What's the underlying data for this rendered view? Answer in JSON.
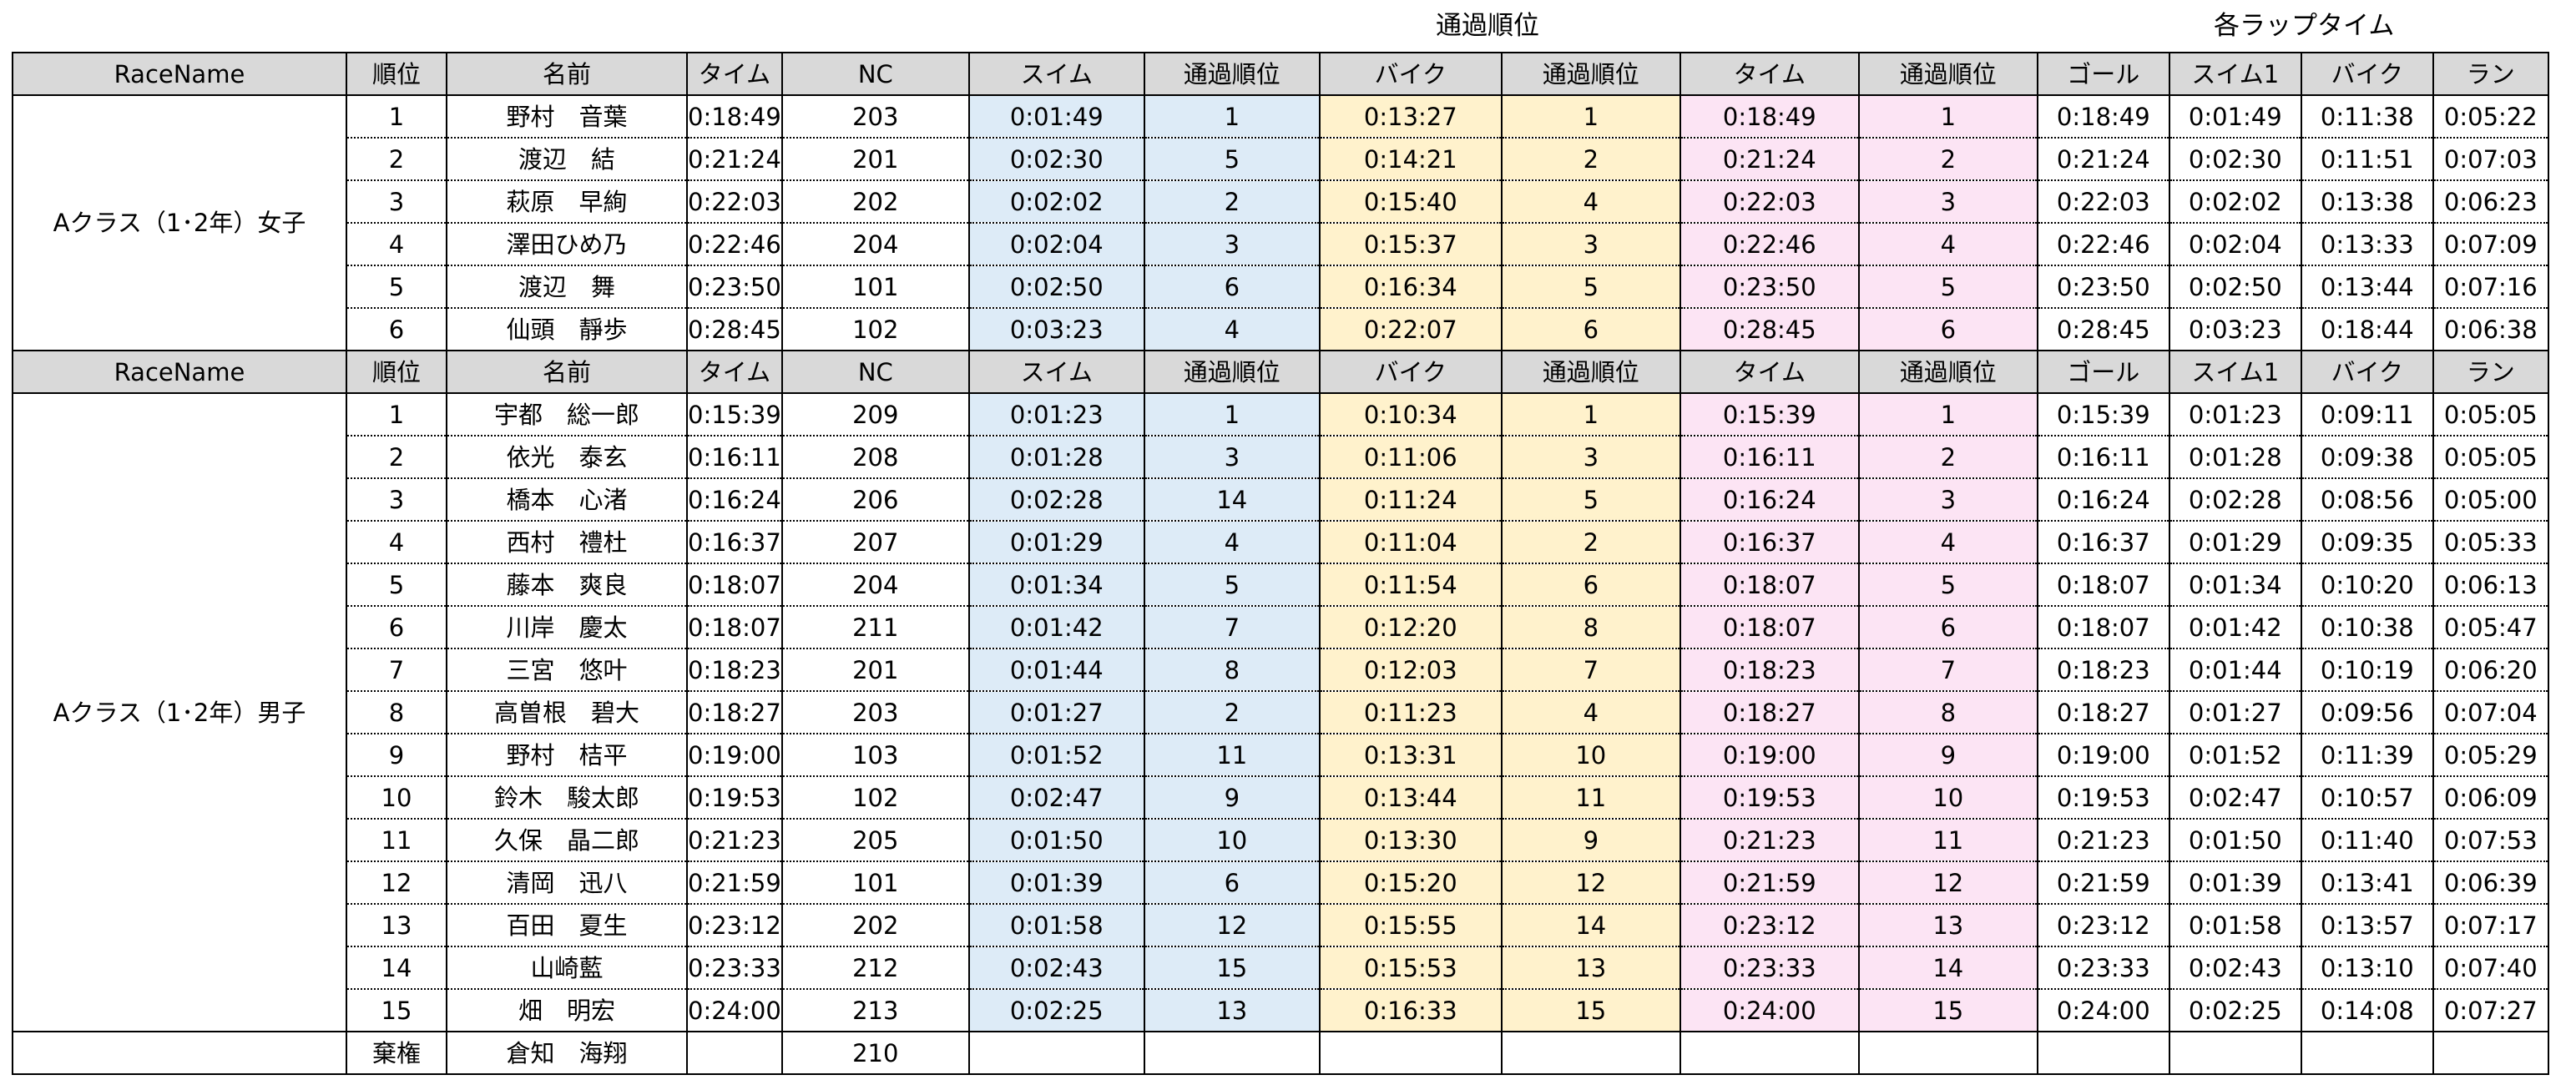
{
  "super_headers": {
    "passing": "通過順位",
    "lap": "各ラップタイム"
  },
  "header": [
    "RaceName",
    "順位",
    "名前",
    "タイム",
    "NC",
    "スイム",
    "通過順位",
    "バイク",
    "通過順位",
    "タイム",
    "通過順位",
    "ゴール",
    "スイム1",
    "バイク",
    "ラン"
  ],
  "groups": [
    {
      "race_name": "Aクラス（1･2年）女子",
      "rows": [
        [
          "1",
          "野村　音葉",
          "0:18:49",
          "203",
          "0:01:49",
          "1",
          "0:13:27",
          "1",
          "0:18:49",
          "1",
          "0:18:49",
          "0:01:49",
          "0:11:38",
          "0:05:22"
        ],
        [
          "2",
          "渡辺　結",
          "0:21:24",
          "201",
          "0:02:30",
          "5",
          "0:14:21",
          "2",
          "0:21:24",
          "2",
          "0:21:24",
          "0:02:30",
          "0:11:51",
          "0:07:03"
        ],
        [
          "3",
          "萩原　早絢",
          "0:22:03",
          "202",
          "0:02:02",
          "2",
          "0:15:40",
          "4",
          "0:22:03",
          "3",
          "0:22:03",
          "0:02:02",
          "0:13:38",
          "0:06:23"
        ],
        [
          "4",
          "澤田ひめ乃",
          "0:22:46",
          "204",
          "0:02:04",
          "3",
          "0:15:37",
          "3",
          "0:22:46",
          "4",
          "0:22:46",
          "0:02:04",
          "0:13:33",
          "0:07:09"
        ],
        [
          "5",
          "渡辺　舞",
          "0:23:50",
          "101",
          "0:02:50",
          "6",
          "0:16:34",
          "5",
          "0:23:50",
          "5",
          "0:23:50",
          "0:02:50",
          "0:13:44",
          "0:07:16"
        ],
        [
          "6",
          "仙頭　靜歩",
          "0:28:45",
          "102",
          "0:03:23",
          "4",
          "0:22:07",
          "6",
          "0:28:45",
          "6",
          "0:28:45",
          "0:03:23",
          "0:18:44",
          "0:06:38"
        ]
      ]
    },
    {
      "race_name": "Aクラス（1･2年）男子",
      "rows": [
        [
          "1",
          "宇都　総一郎",
          "0:15:39",
          "209",
          "0:01:23",
          "1",
          "0:10:34",
          "1",
          "0:15:39",
          "1",
          "0:15:39",
          "0:01:23",
          "0:09:11",
          "0:05:05"
        ],
        [
          "2",
          "依光　泰玄",
          "0:16:11",
          "208",
          "0:01:28",
          "3",
          "0:11:06",
          "3",
          "0:16:11",
          "2",
          "0:16:11",
          "0:01:28",
          "0:09:38",
          "0:05:05"
        ],
        [
          "3",
          "橋本　心渚",
          "0:16:24",
          "206",
          "0:02:28",
          "14",
          "0:11:24",
          "5",
          "0:16:24",
          "3",
          "0:16:24",
          "0:02:28",
          "0:08:56",
          "0:05:00"
        ],
        [
          "4",
          "西村　禮杜",
          "0:16:37",
          "207",
          "0:01:29",
          "4",
          "0:11:04",
          "2",
          "0:16:37",
          "4",
          "0:16:37",
          "0:01:29",
          "0:09:35",
          "0:05:33"
        ],
        [
          "5",
          "藤本　爽良",
          "0:18:07",
          "204",
          "0:01:34",
          "5",
          "0:11:54",
          "6",
          "0:18:07",
          "5",
          "0:18:07",
          "0:01:34",
          "0:10:20",
          "0:06:13"
        ],
        [
          "6",
          "川岸　慶太",
          "0:18:07",
          "211",
          "0:01:42",
          "7",
          "0:12:20",
          "8",
          "0:18:07",
          "6",
          "0:18:07",
          "0:01:42",
          "0:10:38",
          "0:05:47"
        ],
        [
          "7",
          "三宮　悠叶",
          "0:18:23",
          "201",
          "0:01:44",
          "8",
          "0:12:03",
          "7",
          "0:18:23",
          "7",
          "0:18:23",
          "0:01:44",
          "0:10:19",
          "0:06:20"
        ],
        [
          "8",
          "高曽根　碧大",
          "0:18:27",
          "203",
          "0:01:27",
          "2",
          "0:11:23",
          "4",
          "0:18:27",
          "8",
          "0:18:27",
          "0:01:27",
          "0:09:56",
          "0:07:04"
        ],
        [
          "9",
          "野村　桔平",
          "0:19:00",
          "103",
          "0:01:52",
          "11",
          "0:13:31",
          "10",
          "0:19:00",
          "9",
          "0:19:00",
          "0:01:52",
          "0:11:39",
          "0:05:29"
        ],
        [
          "10",
          "鈴木　駿太郎",
          "0:19:53",
          "102",
          "0:02:47",
          "9",
          "0:13:44",
          "11",
          "0:19:53",
          "10",
          "0:19:53",
          "0:02:47",
          "0:10:57",
          "0:06:09"
        ],
        [
          "11",
          "久保　晶二郎",
          "0:21:23",
          "205",
          "0:01:50",
          "10",
          "0:13:30",
          "9",
          "0:21:23",
          "11",
          "0:21:23",
          "0:01:50",
          "0:11:40",
          "0:07:53"
        ],
        [
          "12",
          "清岡　迅八",
          "0:21:59",
          "101",
          "0:01:39",
          "6",
          "0:15:20",
          "12",
          "0:21:59",
          "12",
          "0:21:59",
          "0:01:39",
          "0:13:41",
          "0:06:39"
        ],
        [
          "13",
          "百田　夏生",
          "0:23:12",
          "202",
          "0:01:58",
          "12",
          "0:15:55",
          "14",
          "0:23:12",
          "13",
          "0:23:12",
          "0:01:58",
          "0:13:57",
          "0:07:17"
        ],
        [
          "14",
          "山崎藍",
          "0:23:33",
          "212",
          "0:02:43",
          "15",
          "0:15:53",
          "13",
          "0:23:33",
          "14",
          "0:23:33",
          "0:02:43",
          "0:13:10",
          "0:07:40"
        ],
        [
          "15",
          "畑　明宏",
          "0:24:00",
          "213",
          "0:02:25",
          "13",
          "0:16:33",
          "15",
          "0:24:00",
          "15",
          "0:24:00",
          "0:02:25",
          "0:14:08",
          "0:07:27"
        ]
      ]
    }
  ],
  "withdrawn": {
    "rank": "棄権",
    "name": "倉知　海翔",
    "nc": "210"
  }
}
